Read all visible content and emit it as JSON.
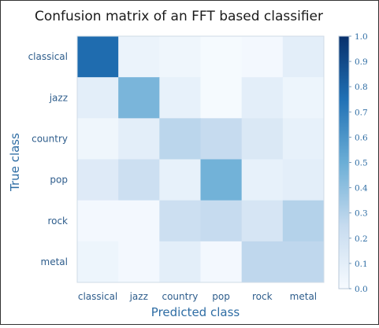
{
  "chart_data": {
    "type": "heatmap",
    "title": "Confusion matrix of an FFT based classifier",
    "xlabel": "Predicted class",
    "ylabel": "True class",
    "x_categories": [
      "classical",
      "jazz",
      "country",
      "pop",
      "rock",
      "metal"
    ],
    "y_categories": [
      "classical",
      "jazz",
      "country",
      "pop",
      "rock",
      "metal"
    ],
    "values": [
      [
        0.77,
        0.06,
        0.04,
        0.01,
        0.02,
        0.1
      ],
      [
        0.1,
        0.46,
        0.08,
        0.01,
        0.1,
        0.05
      ],
      [
        0.04,
        0.1,
        0.28,
        0.25,
        0.15,
        0.08
      ],
      [
        0.13,
        0.22,
        0.08,
        0.48,
        0.08,
        0.1
      ],
      [
        0.02,
        0.02,
        0.22,
        0.25,
        0.17,
        0.3
      ],
      [
        0.05,
        0.02,
        0.1,
        0.02,
        0.27,
        0.27
      ]
    ],
    "colorbar": {
      "range": [
        0.0,
        1.0
      ],
      "ticks": [
        "0.0",
        "0.1",
        "0.2",
        "0.3",
        "0.4",
        "0.5",
        "0.6",
        "0.7",
        "0.8",
        "0.9",
        "1.0"
      ],
      "colormap": [
        "#f7fbff",
        "#c6dbef",
        "#6baed6",
        "#2171b5",
        "#08306b"
      ]
    }
  }
}
